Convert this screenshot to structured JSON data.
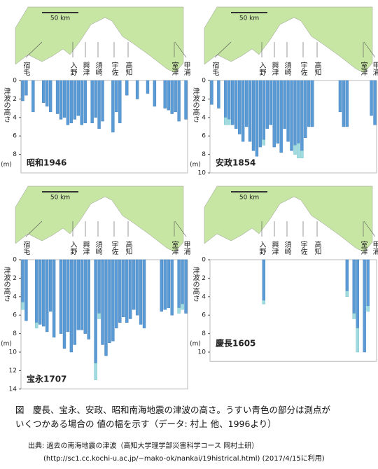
{
  "chart_data": [
    {
      "type": "bar",
      "title": "昭和1946",
      "ylabel": "津波の高さ",
      "yunit": "(m)",
      "map_scale": "50 km",
      "places": [
        "宿毛",
        "入野",
        "興津",
        "須崎",
        "宇佐",
        "高知",
        "室津",
        "甲浦"
      ],
      "ylim": [
        0,
        10
      ],
      "yticks": [
        0,
        2,
        4,
        6,
        8
      ],
      "series": [
        {
          "name": "height",
          "color": "#5b9bd5",
          "values": [
            2.2,
            1.6,
            null,
            3.4,
            null,
            null,
            2.4,
            2.8,
            3.4,
            null,
            3.6,
            4.2,
            4.0,
            4.8,
            4.6,
            4.2,
            3.8,
            4.8,
            4.6,
            null,
            4.6,
            4.0,
            5.2,
            4.4,
            null,
            null,
            5.6,
            3.4,
            4.6,
            null,
            1.6,
            null,
            null,
            2.0,
            null,
            null,
            1.4,
            null,
            2.8,
            null,
            null,
            3.0,
            3.2,
            3.6,
            3.4,
            4.4,
            null,
            4.2
          ]
        },
        {
          "name": "range",
          "color": "#9fdbe0",
          "values": [
            null,
            null,
            null,
            null,
            null,
            null,
            null,
            null,
            null,
            null,
            null,
            null,
            null,
            null,
            null,
            null,
            null,
            null,
            null,
            null,
            null,
            null,
            null,
            null,
            null,
            null,
            null,
            null,
            null,
            null,
            null,
            null,
            null,
            null,
            null,
            null,
            null,
            null,
            null,
            null,
            null,
            null,
            null,
            null,
            null,
            null,
            null,
            null
          ]
        }
      ]
    },
    {
      "type": "bar",
      "title": "安政1854",
      "ylabel": "津波の高さ",
      "yunit": "(m)",
      "map_scale": "50 km",
      "places": [
        "宿毛",
        "入野",
        "興津",
        "須崎",
        "宇佐",
        "高知",
        "室津",
        "甲浦"
      ],
      "ylim": [
        0,
        10
      ],
      "yticks": [
        0,
        2,
        4,
        6,
        8,
        10
      ],
      "series": [
        {
          "name": "height",
          "color": "#5b9bd5",
          "values": [
            2.6,
            null,
            3.0,
            null,
            4.0,
            4.2,
            4.8,
            5.2,
            5.8,
            6.6,
            5.0,
            6.6,
            7.6,
            8.2,
            7.2,
            6.4,
            5.2,
            4.8,
            7.2,
            6.8,
            7.8,
            5.2,
            6.6,
            7.6,
            7.0,
            6.8,
            7.6,
            6.2,
            5.0,
            5.0,
            null,
            null,
            null,
            null,
            null,
            null,
            null,
            3.4,
            5.0,
            5.0,
            null,
            null,
            null,
            null,
            null,
            null,
            3.8,
            4.8
          ]
        },
        {
          "name": "range",
          "color": "#9fdbe0",
          "values": [
            null,
            null,
            null,
            null,
            0.8,
            0.6,
            null,
            null,
            null,
            null,
            null,
            null,
            null,
            null,
            null,
            0.6,
            null,
            null,
            null,
            null,
            null,
            null,
            null,
            null,
            1.0,
            1.6,
            0.8,
            null,
            null,
            null,
            null,
            null,
            null,
            null,
            null,
            null,
            null,
            null,
            null,
            null,
            null,
            null,
            null,
            null,
            null,
            null,
            null,
            null
          ]
        }
      ]
    },
    {
      "type": "bar",
      "title": "宝永1707",
      "ylabel": "津波の高さ",
      "yunit": "(m)",
      "map_scale": "50 km",
      "places": [
        "宿毛",
        "入野",
        "興津",
        "須崎",
        "宇佐",
        "高知",
        "室津",
        "甲浦"
      ],
      "ylim": [
        0,
        14
      ],
      "yticks": [
        0,
        2,
        4,
        6,
        8,
        10,
        12,
        14
      ],
      "series": [
        {
          "name": "height",
          "color": "#5b9bd5",
          "values": [
            4.6,
            6.6,
            null,
            null,
            6.8,
            7.0,
            7.2,
            7.8,
            5.6,
            8.4,
            null,
            8.0,
            9.6,
            7.8,
            10.0,
            9.2,
            7.6,
            7.6,
            8.0,
            8.6,
            null,
            11.2,
            5.8,
            9.2,
            10.4,
            9.0,
            8.8,
            7.4,
            6.8,
            6.2,
            6.8,
            6.4,
            5.4,
            6.0,
            7.0,
            7.4,
            null,
            null,
            null,
            null,
            5.6,
            5.4,
            5.2,
            6.0,
            null,
            5.2,
            4.8,
            5.8
          ]
        },
        {
          "name": "range",
          "color": "#9fdbe0",
          "values": [
            0.8,
            null,
            null,
            null,
            0.6,
            null,
            null,
            null,
            null,
            null,
            null,
            null,
            null,
            null,
            null,
            null,
            null,
            null,
            null,
            null,
            null,
            1.8,
            0.6,
            null,
            null,
            null,
            null,
            null,
            null,
            null,
            null,
            null,
            null,
            null,
            null,
            null,
            null,
            null,
            null,
            null,
            null,
            null,
            null,
            null,
            null,
            0.6,
            0.6,
            null
          ]
        }
      ]
    },
    {
      "type": "bar",
      "title": "慶長1605",
      "ylabel": "津波の高さ",
      "yunit": "(m)",
      "map_scale": "50 km",
      "places": [
        null,
        "入野",
        "興津",
        "須崎",
        "宇佐",
        "高知",
        "室津",
        "甲浦"
      ],
      "ylim": [
        0,
        11
      ],
      "yticks": [
        0,
        2,
        4,
        6,
        8,
        10
      ],
      "series": [
        {
          "name": "height",
          "color": "#5b9bd5",
          "values": [
            null,
            null,
            null,
            null,
            null,
            null,
            null,
            null,
            null,
            null,
            null,
            null,
            null,
            null,
            null,
            4.4,
            null,
            null,
            null,
            null,
            null,
            null,
            null,
            null,
            null,
            null,
            null,
            null,
            null,
            null,
            null,
            null,
            null,
            null,
            null,
            null,
            null,
            null,
            null,
            3.4,
            null,
            5.8,
            7.4,
            null,
            10.0,
            5.0,
            null,
            null
          ]
        },
        {
          "name": "range",
          "color": "#9fdbe0",
          "values": [
            null,
            null,
            null,
            null,
            null,
            null,
            null,
            null,
            null,
            null,
            null,
            null,
            null,
            null,
            null,
            0.4,
            null,
            null,
            null,
            null,
            null,
            null,
            null,
            null,
            null,
            null,
            null,
            null,
            null,
            null,
            null,
            null,
            null,
            null,
            null,
            null,
            null,
            null,
            null,
            0.6,
            null,
            0.6,
            2.6,
            null,
            null,
            0.6,
            null,
            null
          ]
        }
      ]
    }
  ],
  "caption": [
    "図　慶長、宝永、安政、昭和南海地震の津波の高さ。うすい青色の部分は測点が",
    "いくつかある場合の 値の幅を示す（データ: 村上 他、1996より）"
  ],
  "source": [
    "出典: 過去の南海地震の津波（高知大学理学部災害科学コース 岡村土研）",
    "(http://sc1.cc.kochi-u.ac.jp/~mako-ok/nankai/19histrical.html) (2017/4/15に利用)"
  ]
}
